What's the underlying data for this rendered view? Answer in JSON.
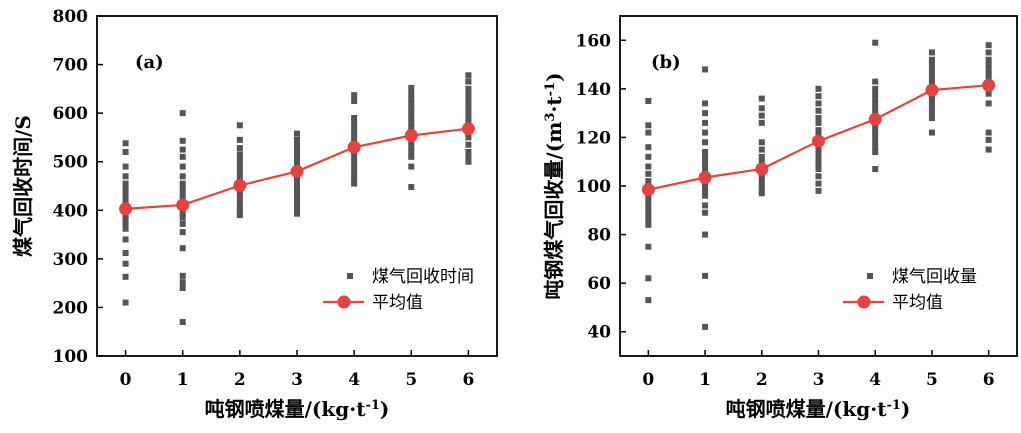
{
  "chart_data": [
    {
      "type": "scatter",
      "panel_label": "(a)",
      "xlabel": "吨钢喷煤量/(kg·t",
      "xlabel_sup": "-1",
      "xlabel_end": ")",
      "ylabel": "煤气回收时间/S",
      "xlim": [
        -0.5,
        6.5
      ],
      "ylim": [
        100,
        800
      ],
      "xticks": [
        0,
        1,
        2,
        3,
        4,
        5,
        6
      ],
      "yticks": [
        100,
        200,
        300,
        400,
        500,
        600,
        700,
        800
      ],
      "grid": false,
      "legend_position": "bottom-right",
      "series": [
        {
          "name": "煤气回收时间",
          "kind": "scatter",
          "color": "#555555",
          "points": [
            [
              0,
              538
            ],
            [
              0,
              520
            ],
            [
              0,
              490
            ],
            [
              0,
              470
            ],
            [
              0,
              455
            ],
            [
              0,
              445
            ],
            [
              0,
              435
            ],
            [
              0,
              425
            ],
            [
              0,
              415
            ],
            [
              0,
              405
            ],
            [
              0,
              398
            ],
            [
              0,
              390
            ],
            [
              0,
              382
            ],
            [
              0,
              373
            ],
            [
              0,
              362
            ],
            [
              0,
              340
            ],
            [
              0,
              312
            ],
            [
              0,
              290
            ],
            [
              0,
              263
            ],
            [
              0,
              210
            ],
            [
              1,
              600
            ],
            [
              1,
              543
            ],
            [
              1,
              525
            ],
            [
              1,
              510
            ],
            [
              1,
              490
            ],
            [
              1,
              470
            ],
            [
              1,
              455
            ],
            [
              1,
              445
            ],
            [
              1,
              435
            ],
            [
              1,
              425
            ],
            [
              1,
              415
            ],
            [
              1,
              405
            ],
            [
              1,
              395
            ],
            [
              1,
              385
            ],
            [
              1,
              372
            ],
            [
              1,
              355
            ],
            [
              1,
              322
            ],
            [
              1,
              265
            ],
            [
              1,
              252
            ],
            [
              1,
              240
            ],
            [
              1,
              170
            ],
            [
              2,
              575
            ],
            [
              2,
              545
            ],
            [
              2,
              528
            ],
            [
              2,
              515
            ],
            [
              2,
              505
            ],
            [
              2,
              495
            ],
            [
              2,
              485
            ],
            [
              2,
              475
            ],
            [
              2,
              465
            ],
            [
              2,
              458
            ],
            [
              2,
              450
            ],
            [
              2,
              442
            ],
            [
              2,
              435
            ],
            [
              2,
              425
            ],
            [
              2,
              415
            ],
            [
              2,
              405
            ],
            [
              2,
              395
            ],
            [
              2,
              390
            ],
            [
              3,
              558
            ],
            [
              3,
              545
            ],
            [
              3,
              535
            ],
            [
              3,
              525
            ],
            [
              3,
              515
            ],
            [
              3,
              505
            ],
            [
              3,
              495
            ],
            [
              3,
              485
            ],
            [
              3,
              475
            ],
            [
              3,
              468
            ],
            [
              3,
              460
            ],
            [
              3,
              450
            ],
            [
              3,
              440
            ],
            [
              3,
              430
            ],
            [
              3,
              420
            ],
            [
              3,
              410
            ],
            [
              3,
              402
            ],
            [
              3,
              393
            ],
            [
              4,
              637
            ],
            [
              4,
              625
            ],
            [
              4,
              590
            ],
            [
              4,
              580
            ],
            [
              4,
              570
            ],
            [
              4,
              560
            ],
            [
              4,
              550
            ],
            [
              4,
              540
            ],
            [
              4,
              530
            ],
            [
              4,
              520
            ],
            [
              4,
              510
            ],
            [
              4,
              500
            ],
            [
              4,
              490
            ],
            [
              4,
              480
            ],
            [
              4,
              470
            ],
            [
              4,
              462
            ],
            [
              4,
              455
            ],
            [
              5,
              652
            ],
            [
              5,
              640
            ],
            [
              5,
              630
            ],
            [
              5,
              620
            ],
            [
              5,
              610
            ],
            [
              5,
              600
            ],
            [
              5,
              590
            ],
            [
              5,
              580
            ],
            [
              5,
              570
            ],
            [
              5,
              560
            ],
            [
              5,
              550
            ],
            [
              5,
              540
            ],
            [
              5,
              530
            ],
            [
              5,
              520
            ],
            [
              5,
              510
            ],
            [
              5,
              490
            ],
            [
              5,
              448
            ],
            [
              6,
              678
            ],
            [
              6,
              665
            ],
            [
              6,
              650
            ],
            [
              6,
              640
            ],
            [
              6,
              630
            ],
            [
              6,
              620
            ],
            [
              6,
              610
            ],
            [
              6,
              600
            ],
            [
              6,
              590
            ],
            [
              6,
              580
            ],
            [
              6,
              570
            ],
            [
              6,
              560
            ],
            [
              6,
              550
            ],
            [
              6,
              535
            ],
            [
              6,
              520
            ],
            [
              6,
              508
            ],
            [
              6,
              500
            ]
          ]
        },
        {
          "name": "平均值",
          "kind": "line",
          "color": "#e8413e",
          "x": [
            0,
            1,
            2,
            3,
            4,
            5,
            6
          ],
          "y": [
            403,
            411,
            451,
            480,
            530,
            554,
            568
          ]
        }
      ]
    },
    {
      "type": "scatter",
      "panel_label": "(b)",
      "xlabel": "吨钢喷煤量/(kg·t",
      "xlabel_sup": "-1",
      "xlabel_end": ")",
      "ylabel": "吨钢煤气回收量/(m",
      "ylabel_sup1": "3",
      "ylabel_mid": "·t",
      "ylabel_sup2": "-1",
      "ylabel_end": ")",
      "xlim": [
        -0.5,
        6.5
      ],
      "ylim": [
        30,
        170
      ],
      "xticks": [
        0,
        1,
        2,
        3,
        4,
        5,
        6
      ],
      "yticks": [
        40,
        60,
        80,
        100,
        120,
        140,
        160
      ],
      "grid": false,
      "legend_position": "bottom-right",
      "series": [
        {
          "name": "煤气回收量",
          "kind": "scatter",
          "color": "#555555",
          "points": [
            [
              0,
              135
            ],
            [
              0,
              125
            ],
            [
              0,
              122
            ],
            [
              0,
              116
            ],
            [
              0,
              112
            ],
            [
              0,
              108
            ],
            [
              0,
              105
            ],
            [
              0,
              102
            ],
            [
              0,
              100
            ],
            [
              0,
              98
            ],
            [
              0,
              96
            ],
            [
              0,
              94
            ],
            [
              0,
              92
            ],
            [
              0,
              90
            ],
            [
              0,
              88
            ],
            [
              0,
              86
            ],
            [
              0,
              84
            ],
            [
              0,
              75
            ],
            [
              0,
              62
            ],
            [
              0,
              53
            ],
            [
              1,
              148
            ],
            [
              1,
              134
            ],
            [
              1,
              130
            ],
            [
              1,
              126
            ],
            [
              1,
              122
            ],
            [
              1,
              118
            ],
            [
              1,
              114
            ],
            [
              1,
              112
            ],
            [
              1,
              110
            ],
            [
              1,
              108
            ],
            [
              1,
              106
            ],
            [
              1,
              104
            ],
            [
              1,
              102
            ],
            [
              1,
              100
            ],
            [
              1,
              98
            ],
            [
              1,
              96
            ],
            [
              1,
              92
            ],
            [
              1,
              89
            ],
            [
              1,
              80
            ],
            [
              1,
              63
            ],
            [
              1,
              42
            ],
            [
              2,
              136
            ],
            [
              2,
              132
            ],
            [
              2,
              129
            ],
            [
              2,
              126
            ],
            [
              2,
              118
            ],
            [
              2,
              115
            ],
            [
              2,
              112
            ],
            [
              2,
              110
            ],
            [
              2,
              108
            ],
            [
              2,
              106
            ],
            [
              2,
              104
            ],
            [
              2,
              102
            ],
            [
              2,
              100
            ],
            [
              2,
              98
            ],
            [
              2,
              97
            ],
            [
              3,
              140
            ],
            [
              3,
              137
            ],
            [
              3,
              134
            ],
            [
              3,
              131
            ],
            [
              3,
              128
            ],
            [
              3,
              126
            ],
            [
              3,
              123
            ],
            [
              3,
              121
            ],
            [
              3,
              119
            ],
            [
              3,
              117
            ],
            [
              3,
              115
            ],
            [
              3,
              113
            ],
            [
              3,
              111
            ],
            [
              3,
              109
            ],
            [
              3,
              107
            ],
            [
              3,
              104
            ],
            [
              3,
              101
            ],
            [
              3,
              98
            ],
            [
              4,
              159
            ],
            [
              4,
              143
            ],
            [
              4,
              140
            ],
            [
              4,
              138
            ],
            [
              4,
              136
            ],
            [
              4,
              134
            ],
            [
              4,
              132
            ],
            [
              4,
              130
            ],
            [
              4,
              128
            ],
            [
              4,
              126
            ],
            [
              4,
              124
            ],
            [
              4,
              122
            ],
            [
              4,
              120
            ],
            [
              4,
              118
            ],
            [
              4,
              116
            ],
            [
              4,
              114
            ],
            [
              4,
              107
            ],
            [
              5,
              155
            ],
            [
              5,
              152
            ],
            [
              5,
              150
            ],
            [
              5,
              148
            ],
            [
              5,
              146
            ],
            [
              5,
              144
            ],
            [
              5,
              142
            ],
            [
              5,
              140
            ],
            [
              5,
              138
            ],
            [
              5,
              136
            ],
            [
              5,
              134
            ],
            [
              5,
              132
            ],
            [
              5,
              130
            ],
            [
              5,
              128
            ],
            [
              5,
              122
            ],
            [
              6,
              158
            ],
            [
              6,
              155
            ],
            [
              6,
              152
            ],
            [
              6,
              150
            ],
            [
              6,
              148
            ],
            [
              6,
              146
            ],
            [
              6,
              144
            ],
            [
              6,
              142
            ],
            [
              6,
              140
            ],
            [
              6,
              138
            ],
            [
              6,
              134
            ],
            [
              6,
              122
            ],
            [
              6,
              119
            ],
            [
              6,
              115
            ]
          ]
        },
        {
          "name": "平均值",
          "kind": "line",
          "color": "#e8413e",
          "x": [
            0,
            1,
            2,
            3,
            4,
            5,
            6
          ],
          "y": [
            98.5,
            103.5,
            107,
            118.5,
            127.5,
            139.5,
            141.5
          ]
        }
      ]
    }
  ]
}
